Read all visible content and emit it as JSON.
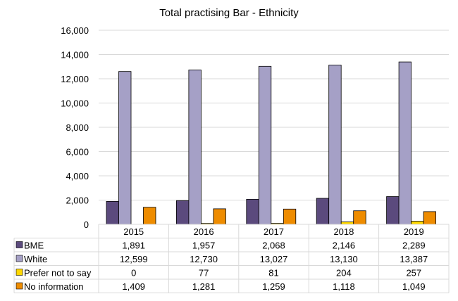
{
  "chart_data": {
    "type": "bar",
    "title": "Total practising Bar - Ethnicity",
    "categories": [
      "2015",
      "2016",
      "2017",
      "2018",
      "2019"
    ],
    "series": [
      {
        "name": "BME",
        "values": [
          1891,
          1957,
          2068,
          2146,
          2289
        ],
        "labels": [
          "1,891",
          "1,957",
          "2,068",
          "2,146",
          "2,289"
        ],
        "color": "#5b4a7d"
      },
      {
        "name": "White",
        "values": [
          12599,
          12730,
          13027,
          13130,
          13387
        ],
        "labels": [
          "12,599",
          "12,730",
          "13,027",
          "13,130",
          "13,387"
        ],
        "color": "#a5a0c6"
      },
      {
        "name": "Prefer not to say",
        "values": [
          0,
          77,
          81,
          204,
          257
        ],
        "labels": [
          "0",
          "77",
          "81",
          "204",
          "257"
        ],
        "color": "#ffd700"
      },
      {
        "name": "No information",
        "values": [
          1409,
          1281,
          1259,
          1118,
          1049
        ],
        "labels": [
          "1,409",
          "1,281",
          "1,259",
          "1,118",
          "1,049"
        ],
        "color": "#ee8c00"
      }
    ],
    "ylim": [
      0,
      16000
    ],
    "yticks": [
      0,
      2000,
      4000,
      6000,
      8000,
      10000,
      12000,
      14000,
      16000
    ],
    "ytick_labels": [
      "0",
      "2,000",
      "4,000",
      "6,000",
      "8,000",
      "10,000",
      "12,000",
      "14,000",
      "16,000"
    ],
    "grid": true,
    "legend": "data-table"
  }
}
